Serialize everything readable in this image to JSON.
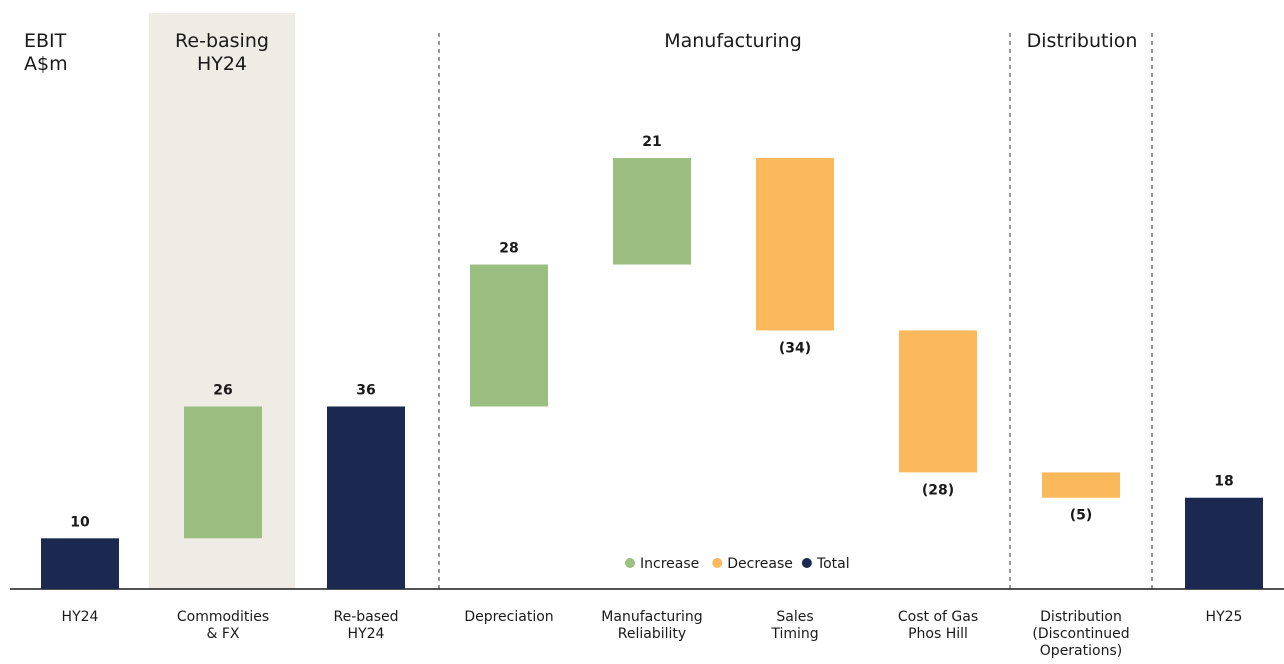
{
  "chart_data": {
    "type": "bar",
    "subtype": "waterfall",
    "ylabel_lines": [
      "EBIT",
      "A$m"
    ],
    "bars": [
      {
        "category_lines": [
          "HY24"
        ],
        "kind": "total",
        "start": 0,
        "end": 10,
        "label": "10"
      },
      {
        "category_lines": [
          "Commodities",
          "& FX"
        ],
        "kind": "increase",
        "start": 10,
        "end": 36,
        "label": "26"
      },
      {
        "category_lines": [
          "Re-based",
          "HY24"
        ],
        "kind": "total",
        "start": 0,
        "end": 36,
        "label": "36"
      },
      {
        "category_lines": [
          "Depreciation"
        ],
        "kind": "increase",
        "start": 36,
        "end": 64,
        "label": "28"
      },
      {
        "category_lines": [
          "Manufacturing",
          "Reliability"
        ],
        "kind": "increase",
        "start": 64,
        "end": 85,
        "label": "21"
      },
      {
        "category_lines": [
          "Sales",
          "Timing"
        ],
        "kind": "decrease",
        "start": 85,
        "end": 51,
        "label": "(34)"
      },
      {
        "category_lines": [
          "Cost of Gas",
          "Phos Hill"
        ],
        "kind": "decrease",
        "start": 51,
        "end": 23,
        "label": "(28)"
      },
      {
        "category_lines": [
          "Distribution",
          "(Discontinued",
          "Operations)"
        ],
        "kind": "decrease",
        "start": 23,
        "end": 18,
        "label": "(5)"
      },
      {
        "category_lines": [
          "HY25"
        ],
        "kind": "total",
        "start": 0,
        "end": 18,
        "label": "18"
      }
    ],
    "groups": [
      {
        "label_lines": [
          "Re-basing",
          "HY24"
        ],
        "shaded": true
      },
      {
        "label_lines": [
          "Manufacturing"
        ],
        "shaded": false
      },
      {
        "label_lines": [
          "Distribution"
        ],
        "shaded": false
      }
    ],
    "legend": {
      "placement": "bottom-center",
      "items": [
        {
          "label": "Increase",
          "kind": "increase"
        },
        {
          "label": "Decrease",
          "kind": "decrease"
        },
        {
          "label": "Total",
          "kind": "total"
        }
      ]
    },
    "ylim": [
      0,
      85
    ],
    "grid": false,
    "colors": {
      "increase": "#9bbf80",
      "decrease": "#fbb95c",
      "total": "#1b2950",
      "group_shade": "#efebe5",
      "text": "#1a1a1a",
      "divider": "#333333"
    }
  }
}
